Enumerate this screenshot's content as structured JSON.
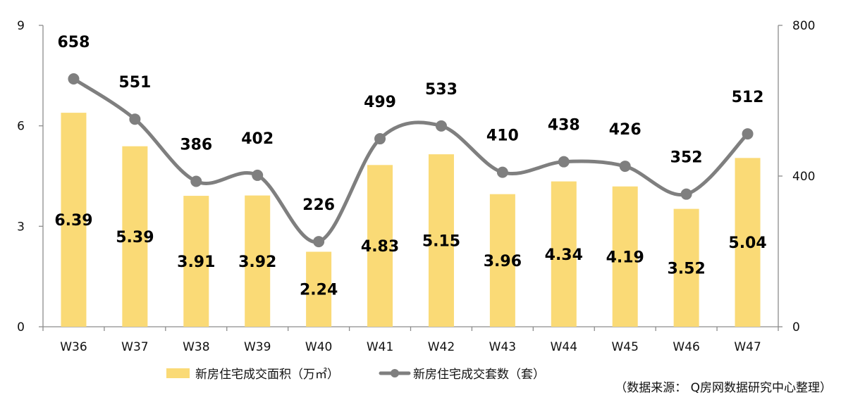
{
  "chart_data": {
    "type": "bar+line",
    "categories": [
      "W36",
      "W37",
      "W38",
      "W39",
      "W40",
      "W41",
      "W42",
      "W43",
      "W44",
      "W45",
      "W46",
      "W47"
    ],
    "series": [
      {
        "name": "新房住宅成交面积（万㎡）",
        "type": "bar",
        "axis": "left",
        "values": [
          6.39,
          5.39,
          3.91,
          3.92,
          2.24,
          4.83,
          5.15,
          3.96,
          4.34,
          4.19,
          3.52,
          5.04
        ]
      },
      {
        "name": "新房住宅成交套数（套）",
        "type": "line",
        "axis": "right",
        "values": [
          658,
          551,
          386,
          402,
          226,
          499,
          533,
          410,
          438,
          426,
          352,
          512
        ]
      }
    ],
    "left_axis": {
      "ylim": [
        0,
        9
      ],
      "ticks": [
        "0",
        "3",
        "6",
        "9"
      ]
    },
    "right_axis": {
      "ylim": [
        0,
        800
      ],
      "ticks": [
        "0",
        "400",
        "800"
      ]
    },
    "legend_position": "bottom",
    "grid": false,
    "source_note": "（数据来源： Q房网数据研究中心整理）",
    "colors": {
      "bar": "#FADA76",
      "line": "#7F7F7F",
      "axis": "#8C8C8C"
    }
  }
}
